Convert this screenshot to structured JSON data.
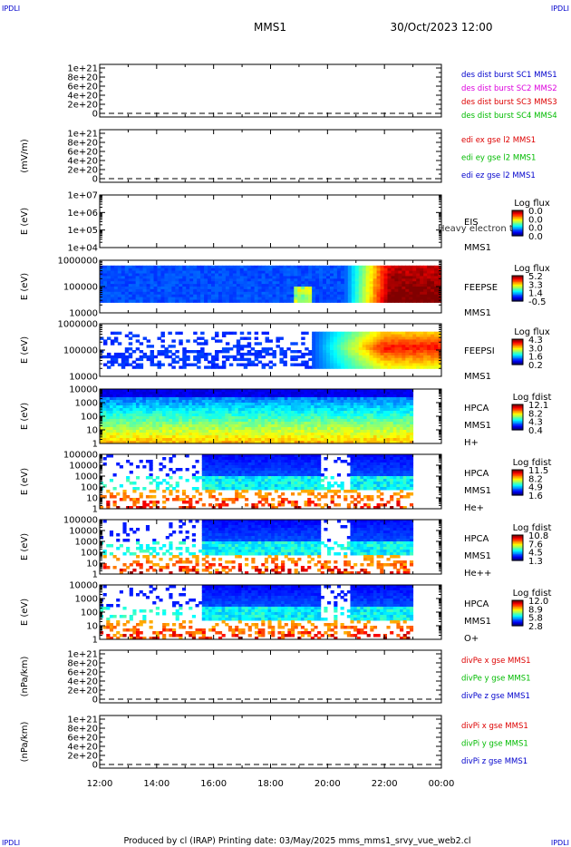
{
  "corner_text": "IPDLI",
  "header": {
    "spacecraft": "MMS1",
    "datetime": "30/Oct/2023 12:00"
  },
  "footer": {
    "text": "Produced by cl (IRAP)   Printing date: 03/May/2025   mms_mms1_srvy_vue_web2.cl"
  },
  "colors": {
    "blue": "#0000cc",
    "magenta": "#dd00dd",
    "red": "#dd0000",
    "green": "#00bb00",
    "axis": "#000000"
  },
  "chart_data": [
    {
      "type": "line",
      "panel": "des-dist",
      "ylabel": "",
      "ylim": [
        0,
        1.1e+21
      ],
      "yticks": [
        "0",
        "2e+20",
        "4e+20",
        "6e+20",
        "8e+20",
        "1e+21"
      ],
      "dashed_zero": true,
      "series": [
        {
          "name": "des dist burst SC1 MMS1",
          "color": "#0000cc",
          "values": []
        },
        {
          "name": "des dist burst SC2 MMS2",
          "color": "#dd00dd",
          "values": []
        },
        {
          "name": "des dist burst SC3 MMS3",
          "color": "#dd0000",
          "values": []
        },
        {
          "name": "des dist burst SC4 MMS4",
          "color": "#00bb00",
          "values": []
        }
      ]
    },
    {
      "type": "line",
      "panel": "edi",
      "ylabel": "(mV/m)",
      "ylim": [
        0,
        1.1e+21
      ],
      "yticks": [
        "0",
        "2e+20",
        "4e+20",
        "6e+20",
        "8e+20",
        "1e+21"
      ],
      "dashed_zero": true,
      "series": [
        {
          "name": "edi ex gse l2 MMS1",
          "color": "#dd0000",
          "values": []
        },
        {
          "name": "edi ey gse l2 MMS1",
          "color": "#00bb00",
          "values": []
        },
        {
          "name": "edi ez gse l2 MMS1",
          "color": "#0000cc",
          "values": []
        }
      ]
    },
    {
      "type": "heatmap",
      "panel": "eis",
      "ylabel": "E (eV)",
      "yticks": [
        "1e+04",
        "1e+05",
        "1e+06",
        "1e+07"
      ],
      "name_lines": [
        "EIS",
        "MMS1"
      ],
      "overlay_text": "Heavy electron to",
      "colorbar": {
        "title": "Log flux",
        "values": [
          "0.0",
          "0.0",
          "0.0",
          "0.0"
        ]
      },
      "data": "none"
    },
    {
      "type": "heatmap",
      "panel": "feeps-e",
      "ylabel": "E (eV)",
      "yticks": [
        "10000",
        "100000",
        "1000000"
      ],
      "name_lines": [
        "FEEPSE",
        "MMS1"
      ],
      "colorbar": {
        "title": "Log flux",
        "values": [
          "5.2",
          "3.3",
          "1.4",
          "-0.5"
        ]
      },
      "data_end_hour": 24,
      "summary": "low flux (blue) until ~20:30, rising to high flux (red/orange) at lower energies after ~21:00; brief enhancement near 19:00-19:30"
    },
    {
      "type": "heatmap",
      "panel": "feeps-i",
      "ylabel": "E (eV)",
      "yticks": [
        "10000",
        "100000",
        "1000000"
      ],
      "name_lines": [
        "FEEPSI",
        "MMS1"
      ],
      "colorbar": {
        "title": "Log flux",
        "values": [
          "4.3",
          "3.0",
          "1.6",
          "0.2"
        ]
      },
      "data_end_hour": 24,
      "summary": "sparse low flux until ~19:30, increasing to red/orange at mid energies after ~21:00"
    },
    {
      "type": "heatmap",
      "panel": "hpca-h",
      "ylabel": "E (eV)",
      "yticks": [
        "1",
        "10",
        "100",
        "1000",
        "10000"
      ],
      "name_lines": [
        "HPCA",
        "MMS1",
        "H+"
      ],
      "colorbar": {
        "title": "Log fdist",
        "values": [
          "12.1",
          "8.2",
          "4.3",
          "0.4"
        ]
      },
      "data_end_hour": 23.0
    },
    {
      "type": "heatmap",
      "panel": "hpca-he",
      "ylabel": "E (eV)",
      "yticks": [
        "1",
        "10",
        "100",
        "1000",
        "10000",
        "100000"
      ],
      "name_lines": [
        "HPCA",
        "MMS1",
        "He+"
      ],
      "colorbar": {
        "title": "Log fdist",
        "values": [
          "11.5",
          "8.2",
          "4.9",
          "1.6"
        ]
      },
      "data_end_hour": 23.0
    },
    {
      "type": "heatmap",
      "panel": "hpca-he2",
      "ylabel": "E (eV)",
      "yticks": [
        "1",
        "10",
        "100",
        "1000",
        "10000",
        "100000"
      ],
      "name_lines": [
        "HPCA",
        "MMS1",
        "He++"
      ],
      "colorbar": {
        "title": "Log fdist",
        "values": [
          "10.8",
          "7.6",
          "4.5",
          "1.3"
        ]
      },
      "data_end_hour": 23.0
    },
    {
      "type": "heatmap",
      "panel": "hpca-o",
      "ylabel": "E (eV)",
      "yticks": [
        "1",
        "10",
        "100",
        "1000",
        "10000"
      ],
      "name_lines": [
        "HPCA",
        "MMS1",
        "O+"
      ],
      "colorbar": {
        "title": "Log fdist",
        "values": [
          "12.0",
          "8.9",
          "5.8",
          "2.8"
        ]
      },
      "data_end_hour": 23.0
    },
    {
      "type": "line",
      "panel": "divpe",
      "ylabel": "(nPa/km)",
      "ylim": [
        0,
        1.1e+21
      ],
      "yticks": [
        "0",
        "2e+20",
        "4e+20",
        "6e+20",
        "8e+20",
        "1e+21"
      ],
      "dashed_zero": true,
      "series": [
        {
          "name": "divPe x gse MMS1",
          "color": "#dd0000",
          "values": []
        },
        {
          "name": "divPe y gse MMS1",
          "color": "#00bb00",
          "values": []
        },
        {
          "name": "divPe z gse MMS1",
          "color": "#0000cc",
          "values": []
        }
      ]
    },
    {
      "type": "line",
      "panel": "divpi",
      "ylabel": "(nPa/km)",
      "ylim": [
        0,
        1.1e+21
      ],
      "yticks": [
        "0",
        "2e+20",
        "4e+20",
        "6e+20",
        "8e+20",
        "1e+21"
      ],
      "dashed_zero": true,
      "series": [
        {
          "name": "divPi x gse MMS1",
          "color": "#dd0000",
          "values": []
        },
        {
          "name": "divPi y gse MMS1",
          "color": "#00bb00",
          "values": []
        },
        {
          "name": "divPi z gse MMS1",
          "color": "#0000cc",
          "values": []
        }
      ]
    }
  ],
  "time_axis": {
    "range_hours": [
      12,
      24
    ],
    "ticks": [
      "12:00",
      "14:00",
      "16:00",
      "18:00",
      "20:00",
      "22:00",
      "00:00"
    ]
  }
}
